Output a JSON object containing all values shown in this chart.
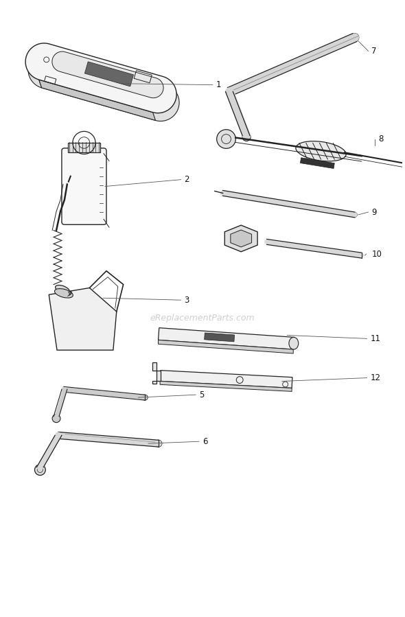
{
  "background_color": "#ffffff",
  "line_color": "#222222",
  "label_color": "#111111",
  "watermark_text": "eReplacementParts.com",
  "watermark_color": "#bbbbbb",
  "fig_width": 5.9,
  "fig_height": 8.99
}
